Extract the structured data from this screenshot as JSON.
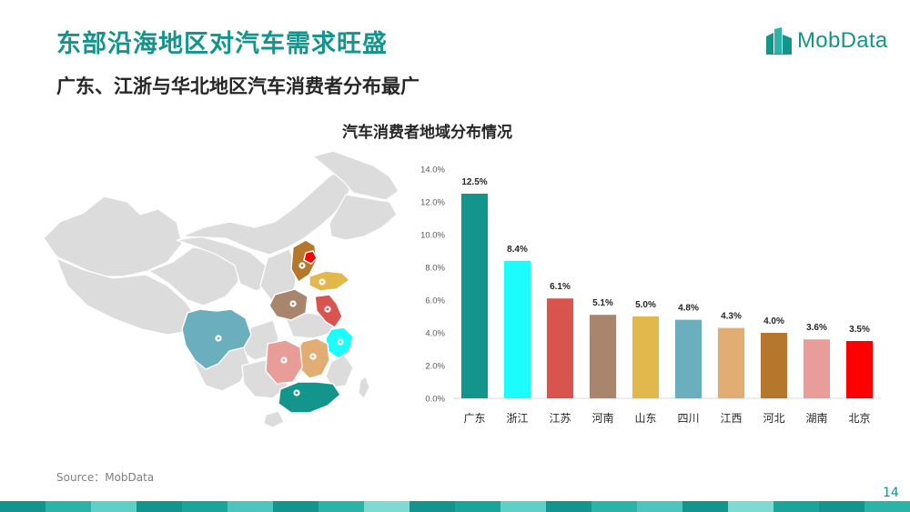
{
  "header": {
    "title": "东部沿海地区对汽车需求旺盛",
    "subtitle": "广东、江浙与华北地区汽车消费者分布最广",
    "logo_text": "MobData"
  },
  "chart_data": {
    "type": "bar",
    "title": "汽车消费者地域分布情况",
    "categories": [
      "广东",
      "浙江",
      "江苏",
      "河南",
      "山东",
      "四川",
      "江西",
      "河北",
      "湖南",
      "北京"
    ],
    "values": [
      12.5,
      8.4,
      6.1,
      5.1,
      5.0,
      4.8,
      4.3,
      4.0,
      3.6,
      3.5
    ],
    "data_labels": [
      "12.5%",
      "8.4%",
      "6.1%",
      "5.1%",
      "5.0%",
      "4.8%",
      "4.3%",
      "4.0%",
      "3.6%",
      "3.5%"
    ],
    "colors": [
      "#13948c",
      "#1dfcfc",
      "#d9534f",
      "#a8856c",
      "#e2b84d",
      "#6baebd",
      "#e2ad73",
      "#b5772b",
      "#e89d98",
      "#fd0000"
    ],
    "yticks": [
      "0.0%",
      "2.0%",
      "4.0%",
      "6.0%",
      "8.0%",
      "10.0%",
      "12.0%",
      "14.0%"
    ],
    "ylim": [
      0,
      14
    ],
    "xlabel": "",
    "ylabel": "",
    "grid": false,
    "legend": "none"
  },
  "map": {
    "base_color": "#dcdcdc",
    "highlighted": [
      {
        "name": "广东",
        "color": "#13948c"
      },
      {
        "name": "浙江",
        "color": "#1dfcfc"
      },
      {
        "name": "江苏",
        "color": "#d9534f"
      },
      {
        "name": "河南",
        "color": "#a8856c"
      },
      {
        "name": "山东",
        "color": "#e2b84d"
      },
      {
        "name": "四川",
        "color": "#6baebd"
      },
      {
        "name": "江西",
        "color": "#e2ad73"
      },
      {
        "name": "河北",
        "color": "#b5772b"
      },
      {
        "name": "湖南",
        "color": "#e89d98"
      },
      {
        "name": "北京",
        "color": "#fd0000"
      }
    ]
  },
  "footer": {
    "source": "Source：MobData",
    "page_number": "14",
    "stripe_colors": [
      "#13948c",
      "#2bb3a8",
      "#5fd0c8",
      "#13948c",
      "#1aa59b",
      "#4cc6bc",
      "#13948c",
      "#2bb3a8",
      "#7fdad2",
      "#13948c",
      "#1aa59b",
      "#5fd0c8",
      "#13948c",
      "#2bb3a8",
      "#4cc6bc",
      "#13948c",
      "#7fdad2",
      "#1aa59b",
      "#13948c",
      "#2bb3a8"
    ]
  }
}
